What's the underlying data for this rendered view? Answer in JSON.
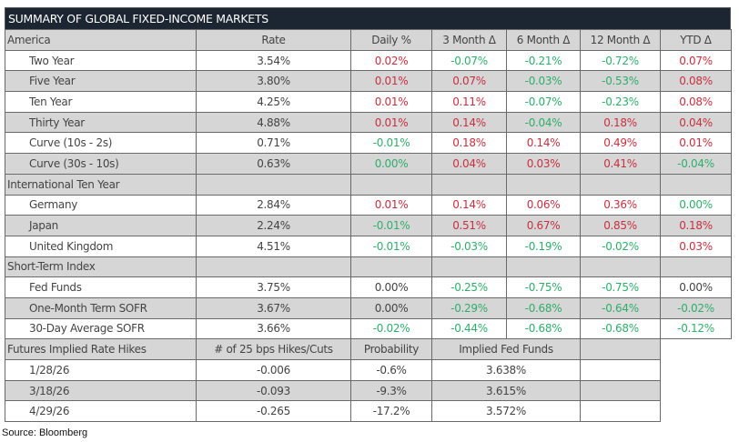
{
  "title": "SUMMARY OF GLOBAL FIXED-INCOME MARKETS",
  "colors": {
    "positive": "#c8303f",
    "negative": "#2fae6a",
    "header_bg": "#1c2633",
    "row_gray": "#d6d6d6"
  },
  "rows": [
    {
      "type": "hdr",
      "shade": "gray",
      "cells": [
        {
          "t": "America"
        },
        {
          "t": "Rate"
        },
        {
          "t": "Daily %"
        },
        {
          "t": "3 Month Δ"
        },
        {
          "t": "6 Month Δ"
        },
        {
          "t": "12 Month Δ"
        },
        {
          "t": "YTD Δ"
        }
      ]
    },
    {
      "type": "row",
      "shade": "white",
      "cells": [
        {
          "t": "Two Year"
        },
        {
          "t": "3.54%"
        },
        {
          "t": "0.02%",
          "c": "red"
        },
        {
          "t": "-0.07%",
          "c": "green"
        },
        {
          "t": "-0.21%",
          "c": "green"
        },
        {
          "t": "-0.72%",
          "c": "green"
        },
        {
          "t": "0.07%",
          "c": "red"
        }
      ]
    },
    {
      "type": "row",
      "shade": "gray",
      "cells": [
        {
          "t": "Five Year"
        },
        {
          "t": "3.80%"
        },
        {
          "t": "0.01%",
          "c": "red"
        },
        {
          "t": "0.07%",
          "c": "red"
        },
        {
          "t": "-0.03%",
          "c": "green"
        },
        {
          "t": "-0.53%",
          "c": "green"
        },
        {
          "t": "0.08%",
          "c": "red"
        }
      ]
    },
    {
      "type": "row",
      "shade": "white",
      "cells": [
        {
          "t": "Ten Year"
        },
        {
          "t": "4.25%"
        },
        {
          "t": "0.01%",
          "c": "red"
        },
        {
          "t": "0.11%",
          "c": "red"
        },
        {
          "t": "-0.07%",
          "c": "green"
        },
        {
          "t": "-0.23%",
          "c": "green"
        },
        {
          "t": "0.08%",
          "c": "red"
        }
      ]
    },
    {
      "type": "row",
      "shade": "gray",
      "cells": [
        {
          "t": "Thirty Year"
        },
        {
          "t": "4.88%"
        },
        {
          "t": "0.01%",
          "c": "red"
        },
        {
          "t": "0.14%",
          "c": "red"
        },
        {
          "t": "-0.04%",
          "c": "green"
        },
        {
          "t": "0.18%",
          "c": "red"
        },
        {
          "t": "0.04%",
          "c": "red"
        }
      ]
    },
    {
      "type": "row",
      "shade": "white",
      "cells": [
        {
          "t": "Curve (10s - 2s)"
        },
        {
          "t": "0.71%"
        },
        {
          "t": "-0.01%",
          "c": "green"
        },
        {
          "t": "0.18%",
          "c": "red"
        },
        {
          "t": "0.14%",
          "c": "red"
        },
        {
          "t": "0.49%",
          "c": "red"
        },
        {
          "t": "0.01%",
          "c": "red"
        }
      ]
    },
    {
      "type": "row",
      "shade": "gray",
      "cells": [
        {
          "t": "Curve (30s - 10s)"
        },
        {
          "t": "0.63%"
        },
        {
          "t": "0.00%",
          "c": "green"
        },
        {
          "t": "0.04%",
          "c": "red"
        },
        {
          "t": "0.03%",
          "c": "red"
        },
        {
          "t": "0.41%",
          "c": "red"
        },
        {
          "t": "-0.04%",
          "c": "green"
        }
      ]
    },
    {
      "type": "section",
      "shade": "gray",
      "cells": [
        {
          "t": "International Ten Year"
        },
        {
          "t": ""
        },
        {
          "t": ""
        },
        {
          "t": ""
        },
        {
          "t": ""
        },
        {
          "t": ""
        },
        {
          "t": ""
        }
      ]
    },
    {
      "type": "row",
      "shade": "white",
      "cells": [
        {
          "t": "Germany"
        },
        {
          "t": "2.84%"
        },
        {
          "t": "0.01%",
          "c": "red"
        },
        {
          "t": "0.14%",
          "c": "red"
        },
        {
          "t": "0.06%",
          "c": "red"
        },
        {
          "t": "0.36%",
          "c": "red"
        },
        {
          "t": "0.00%",
          "c": "green"
        }
      ]
    },
    {
      "type": "row",
      "shade": "gray",
      "cells": [
        {
          "t": "Japan"
        },
        {
          "t": "2.24%"
        },
        {
          "t": "-0.01%",
          "c": "green"
        },
        {
          "t": "0.51%",
          "c": "red"
        },
        {
          "t": "0.67%",
          "c": "red"
        },
        {
          "t": "0.85%",
          "c": "red"
        },
        {
          "t": "0.18%",
          "c": "red"
        }
      ]
    },
    {
      "type": "row",
      "shade": "white",
      "cells": [
        {
          "t": "United Kingdom"
        },
        {
          "t": "4.51%"
        },
        {
          "t": "-0.01%",
          "c": "green"
        },
        {
          "t": "-0.03%",
          "c": "green"
        },
        {
          "t": "-0.19%",
          "c": "green"
        },
        {
          "t": "-0.02%",
          "c": "green"
        },
        {
          "t": "0.03%",
          "c": "red"
        }
      ]
    },
    {
      "type": "section",
      "shade": "gray",
      "cells": [
        {
          "t": "Short-Term Index"
        },
        {
          "t": ""
        },
        {
          "t": ""
        },
        {
          "t": ""
        },
        {
          "t": ""
        },
        {
          "t": ""
        },
        {
          "t": ""
        }
      ]
    },
    {
      "type": "row",
      "shade": "white",
      "cells": [
        {
          "t": "Fed Funds"
        },
        {
          "t": "3.75%"
        },
        {
          "t": "0.00%"
        },
        {
          "t": "-0.25%",
          "c": "green"
        },
        {
          "t": "-0.75%",
          "c": "green"
        },
        {
          "t": "-0.75%",
          "c": "green"
        },
        {
          "t": "0.00%"
        }
      ]
    },
    {
      "type": "row",
      "shade": "gray",
      "cells": [
        {
          "t": "One-Month Term SOFR"
        },
        {
          "t": "3.67%"
        },
        {
          "t": "0.00%"
        },
        {
          "t": "-0.29%",
          "c": "green"
        },
        {
          "t": "-0.68%",
          "c": "green"
        },
        {
          "t": "-0.64%",
          "c": "green"
        },
        {
          "t": "-0.02%",
          "c": "green"
        }
      ]
    },
    {
      "type": "row",
      "shade": "white",
      "cells": [
        {
          "t": "30-Day Average SOFR"
        },
        {
          "t": "3.66%"
        },
        {
          "t": "-0.02%",
          "c": "green"
        },
        {
          "t": "-0.44%",
          "c": "green"
        },
        {
          "t": "-0.68%",
          "c": "green"
        },
        {
          "t": "-0.68%",
          "c": "green"
        },
        {
          "t": "-0.12%",
          "c": "green"
        }
      ]
    },
    {
      "type": "hdr",
      "shade": "gray",
      "cells": [
        {
          "t": "Futures Implied Rate Hikes"
        },
        {
          "t": "# of 25 bps Hikes/Cuts"
        },
        {
          "t": "Probability"
        },
        {
          "t": "Implied Fed Funds",
          "span": 2
        },
        {
          "t": ""
        },
        {
          "t": ""
        }
      ]
    },
    {
      "type": "row",
      "shade": "white",
      "cells": [
        {
          "t": "1/28/26"
        },
        {
          "t": "-0.006"
        },
        {
          "t": "-0.6%"
        },
        {
          "t": "3.638%",
          "span": 2
        },
        {
          "t": ""
        },
        {
          "t": ""
        }
      ]
    },
    {
      "type": "row",
      "shade": "gray",
      "cells": [
        {
          "t": "3/18/26"
        },
        {
          "t": "-0.093"
        },
        {
          "t": "-9.3%"
        },
        {
          "t": "3.615%",
          "span": 2
        },
        {
          "t": ""
        },
        {
          "t": ""
        }
      ]
    },
    {
      "type": "row",
      "shade": "white",
      "cells": [
        {
          "t": "4/29/26"
        },
        {
          "t": "-0.265"
        },
        {
          "t": "-17.2%"
        },
        {
          "t": "3.572%",
          "span": 2
        },
        {
          "t": ""
        },
        {
          "t": ""
        }
      ]
    }
  ],
  "source": "Source: Bloomberg"
}
